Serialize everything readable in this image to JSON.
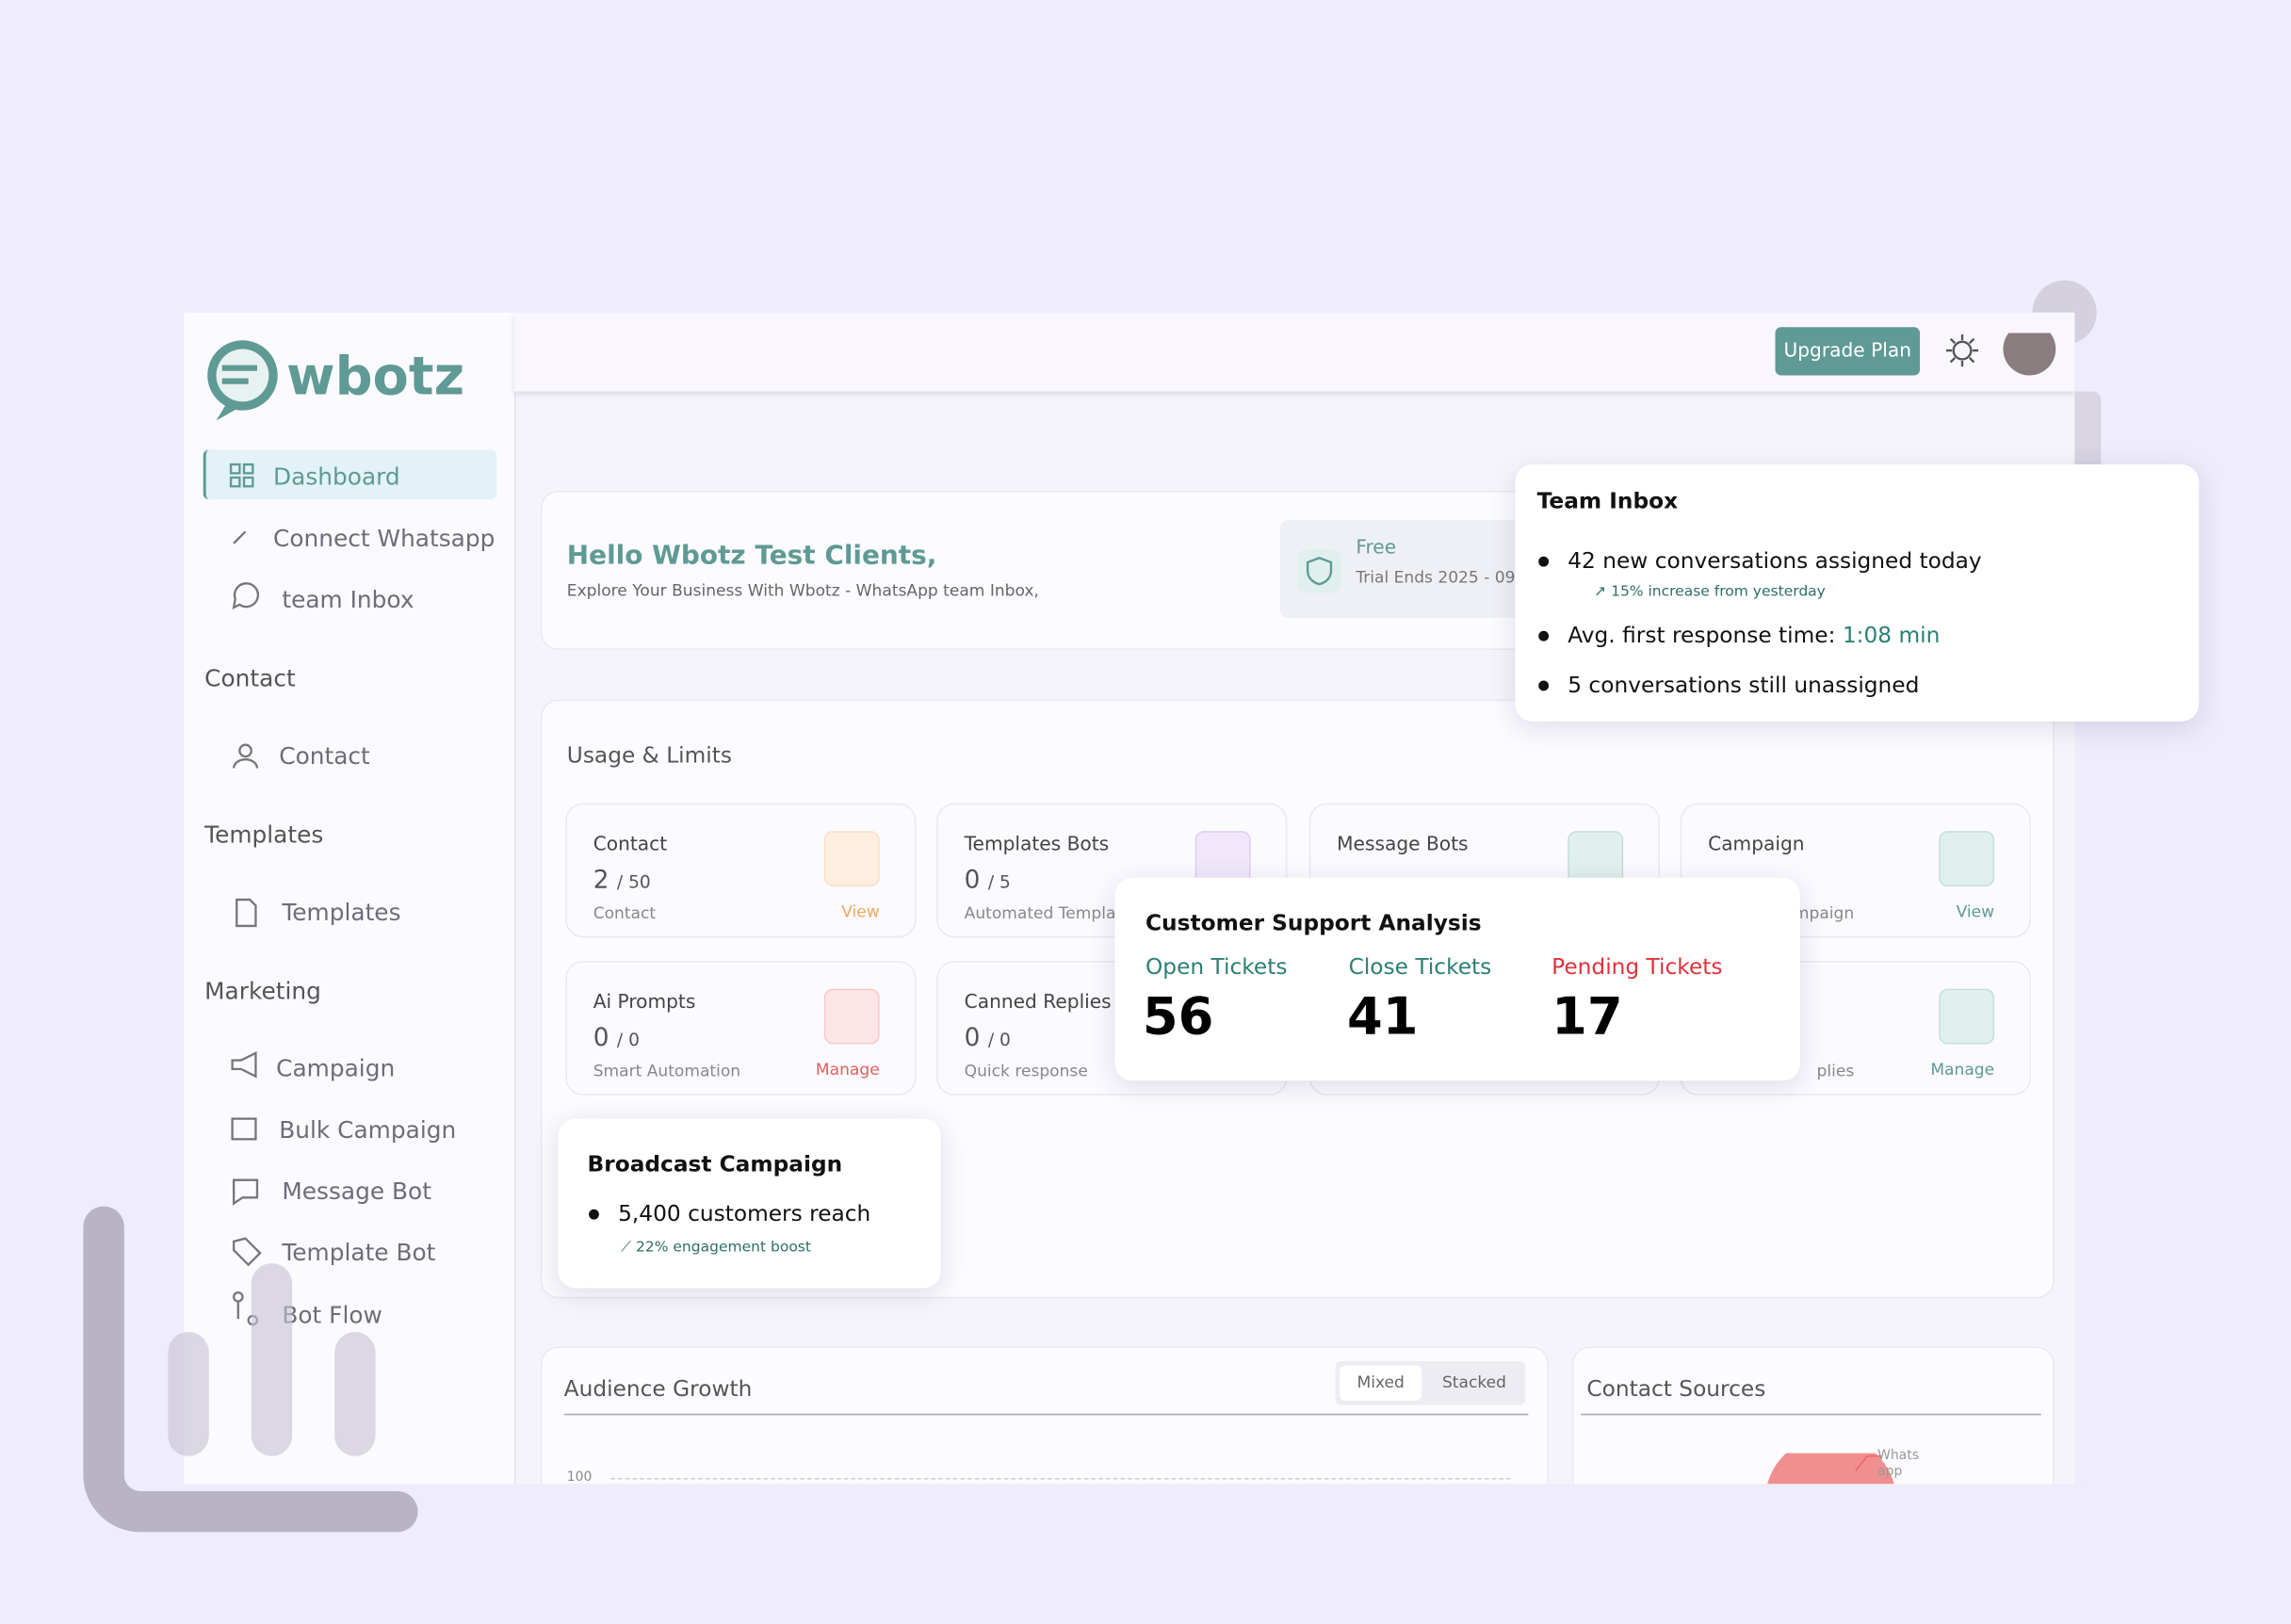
{
  "logo": "wbotz",
  "nav": {
    "main": [
      "Dashboard",
      "Connect Whatsapp",
      "team Inbox"
    ],
    "sections": [
      {
        "title": "Contact",
        "items": [
          "Contact"
        ]
      },
      {
        "title": "Templates",
        "items": [
          "Templates"
        ]
      },
      {
        "title": "Marketing",
        "items": [
          "Campaign",
          "Bulk Campaign",
          "Message Bot",
          "Template Bot",
          "Bot Flow"
        ]
      }
    ]
  },
  "header": {
    "button": "Upgrade Plan"
  },
  "welcome": {
    "title": "Hello Wbotz Test Clients,",
    "subtitle": "Explore Your Business With Wbotz - WhatsApp team Inbox,",
    "plan": "Free",
    "trial": "Trial Ends 2025 - 09 -"
  },
  "usage": {
    "title": "Usage & Limits",
    "cards": [
      {
        "title": "Contact",
        "value": "2",
        "limit": "/ 50",
        "caption": "Contact",
        "action": "View"
      },
      {
        "title": "Templates Bots",
        "value": "0",
        "limit": "/ 5",
        "caption": "Automated Template"
      },
      {
        "title": "Message Bots"
      },
      {
        "title": "Campaign",
        "caption": "ampaign",
        "action": "View"
      },
      {
        "title": "Ai Prompts",
        "value": "0",
        "limit": "/ 0",
        "caption": "Smart Automation",
        "action": "Manage"
      },
      {
        "title": "Canned Replies",
        "value": "0",
        "limit": "/ 0",
        "caption": "Quick response"
      },
      {},
      {
        "caption": "plies",
        "action": "Manage"
      }
    ]
  },
  "team_inbox": {
    "title": "Team Inbox",
    "items": [
      {
        "text": "42 new conversations assigned today",
        "note": "15% increase from yesterday"
      },
      {
        "text": "Avg. first response time:",
        "highlight": "1:08 min"
      },
      {
        "text": "5 conversations still unassigned"
      }
    ]
  },
  "support": {
    "title": "Customer Support Analysis",
    "stats": [
      {
        "label": "Open Tickets",
        "value": 56
      },
      {
        "label": "Close Tickets",
        "value": 41
      },
      {
        "label": "Pending Tickets",
        "value": 17
      }
    ]
  },
  "broadcast": {
    "title": "Broadcast Campaign",
    "item": "5,400 customers reach",
    "note": "22% engagement boost"
  },
  "audience": {
    "title": "Audience Growth",
    "toggles": [
      "Mixed",
      "Stacked"
    ],
    "tick": "100"
  },
  "sources": {
    "title": "Contact Sources",
    "label": "Whats app"
  }
}
